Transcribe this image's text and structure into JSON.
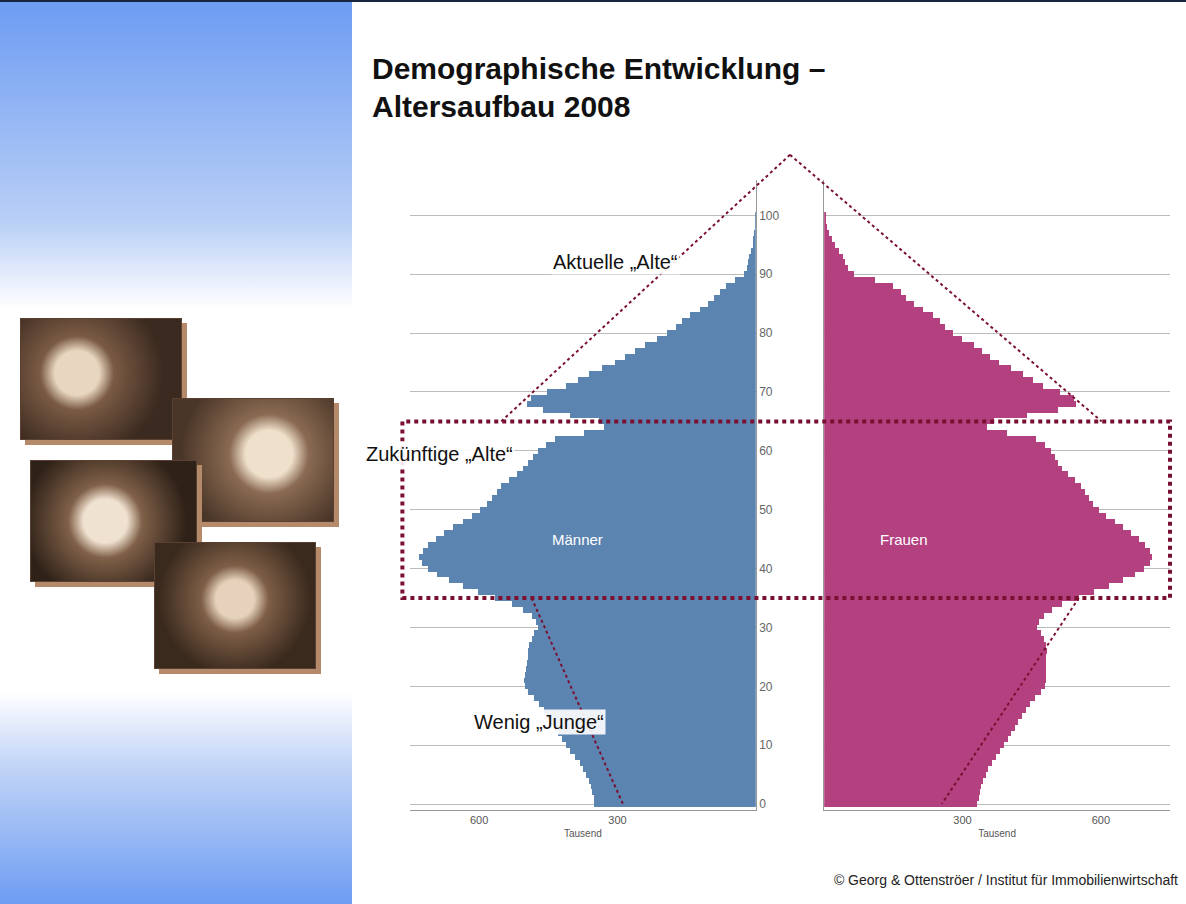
{
  "chart_data": {
    "type": "bar",
    "title": "Demographische Entwicklung – Altersaufbau 2008",
    "orientation": "horizontal",
    "grid": true,
    "y": [
      0,
      1,
      2,
      3,
      4,
      5,
      6,
      7,
      8,
      9,
      10,
      11,
      12,
      13,
      14,
      15,
      16,
      17,
      18,
      19,
      20,
      21,
      22,
      23,
      24,
      25,
      26,
      27,
      28,
      29,
      30,
      31,
      32,
      33,
      34,
      35,
      36,
      37,
      38,
      39,
      40,
      41,
      42,
      43,
      44,
      45,
      46,
      47,
      48,
      49,
      50,
      51,
      52,
      53,
      54,
      55,
      56,
      57,
      58,
      59,
      60,
      61,
      62,
      63,
      64,
      65,
      66,
      67,
      68,
      69,
      70,
      71,
      72,
      73,
      74,
      75,
      76,
      77,
      78,
      79,
      80,
      81,
      82,
      83,
      84,
      85,
      86,
      87,
      88,
      89,
      90,
      91,
      92,
      93,
      94,
      95,
      96,
      97,
      98,
      99,
      100
    ],
    "ylim": [
      -1,
      106
    ],
    "yticks": [
      0,
      10,
      20,
      30,
      40,
      50,
      60,
      70,
      80,
      90,
      100
    ],
    "xlim": [
      0,
      750
    ],
    "xticks": [
      300,
      600
    ],
    "x_label": "Tausend",
    "series": [
      {
        "name": "Männer",
        "color": "#5b84b1",
        "values": [
          350,
          352,
          355,
          358,
          362,
          368,
          374,
          382,
          392,
          402,
          412,
          420,
          428,
          436,
          444,
          452,
          460,
          470,
          482,
          494,
          500,
          502,
          500,
          498,
          496,
          494,
          495,
          492,
          486,
          480,
          472,
          476,
          486,
          504,
          528,
          566,
          602,
          636,
          666,
          692,
          712,
          724,
          730,
          722,
          710,
          694,
          676,
          656,
          636,
          616,
          598,
          584,
          572,
          562,
          552,
          536,
          518,
          504,
          494,
          484,
          472,
          456,
          436,
          372,
          330,
          340,
          404,
          462,
          496,
          488,
          452,
          412,
          386,
          362,
          334,
          306,
          284,
          262,
          240,
          214,
          192,
          174,
          160,
          142,
          122,
          104,
          90,
          78,
          64,
          46,
          26,
          20,
          17,
          14,
          10,
          7,
          5,
          3,
          2,
          1,
          1
        ]
      },
      {
        "name": "Frauen",
        "color": "#b3407f",
        "values": [
          332,
          335,
          337,
          340,
          344,
          350,
          355,
          363,
          372,
          382,
          391,
          399,
          406,
          414,
          421,
          429,
          437,
          447,
          458,
          470,
          478,
          482,
          482,
          482,
          482,
          482,
          484,
          482,
          476,
          470,
          462,
          466,
          476,
          494,
          516,
          552,
          586,
          618,
          648,
          674,
          694,
          706,
          712,
          706,
          696,
          682,
          666,
          648,
          630,
          612,
          596,
          584,
          574,
          566,
          558,
          544,
          528,
          516,
          508,
          500,
          492,
          478,
          460,
          396,
          354,
          368,
          440,
          506,
          546,
          542,
          512,
          474,
          452,
          432,
          406,
          380,
          360,
          342,
          324,
          298,
          280,
          262,
          252,
          236,
          214,
          194,
          178,
          166,
          150,
          110,
          64,
          52,
          46,
          40,
          32,
          24,
          17,
          11,
          7,
          4,
          3
        ]
      }
    ],
    "annotations": [
      {
        "text": "Aktuelle „Alte“"
      },
      {
        "text": "Zukünftige „Alte“",
        "y_range": [
          35,
          65
        ]
      },
      {
        "text": "Wenig „Junge“"
      }
    ]
  },
  "footer": "© Georg & Ottenströer / Institut für Immobilienwirtschaft"
}
